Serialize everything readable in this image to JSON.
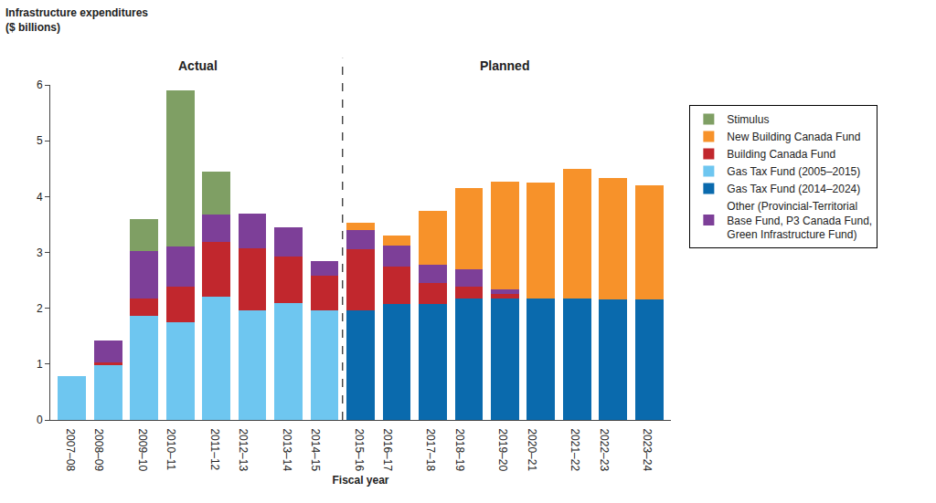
{
  "chart_data": {
    "type": "bar",
    "stacked": true,
    "ylabel": "Infrastructure expenditures\n($ billions)",
    "xlabel": "Fiscal year",
    "annotations": [
      "Actual",
      "Planned"
    ],
    "categories": [
      "2007–08",
      "2008–09",
      "2009–10",
      "2010–11",
      "2011–12",
      "2012–13",
      "2013–14",
      "2014–15",
      "2015–16",
      "2016–17",
      "2017–18",
      "2018–19",
      "2019–20",
      "2020–21",
      "2021–22",
      "2022–23",
      "2023–24"
    ],
    "ylim": [
      0,
      6
    ],
    "yticks": [
      0,
      1,
      2,
      3,
      4,
      5,
      6
    ],
    "grid": false,
    "legend": "right",
    "series": [
      {
        "name": "Gas Tax Fund (2005–2015)",
        "color": "#6ec6f0",
        "values": [
          0.78,
          0.98,
          1.87,
          1.75,
          2.2,
          1.97,
          2.1,
          1.97,
          null,
          null,
          null,
          null,
          null,
          null,
          null,
          null,
          null
        ]
      },
      {
        "name": "Gas Tax Fund (2014–2024)",
        "color": "#0a6aad",
        "values": [
          null,
          null,
          null,
          null,
          null,
          null,
          null,
          null,
          1.97,
          2.08,
          2.08,
          2.17,
          2.17,
          2.17,
          2.17,
          2.16,
          2.16
        ]
      },
      {
        "name": "Building Canada Fund",
        "color": "#c1272d",
        "values": [
          null,
          0.05,
          0.3,
          0.63,
          0.98,
          1.1,
          0.82,
          0.62,
          1.08,
          0.67,
          0.38,
          0.22,
          0.08,
          null,
          null,
          null,
          null
        ]
      },
      {
        "name": "Other (Provincial-Territorial Base Fund, P3 Canada Fund, Green Infrastructure Fund)",
        "color": "#7d3f98",
        "values": [
          null,
          0.4,
          0.85,
          0.72,
          0.5,
          0.63,
          0.53,
          0.26,
          0.35,
          0.38,
          0.32,
          0.31,
          0.08,
          null,
          null,
          null,
          null
        ]
      },
      {
        "name": "Stimulus",
        "color": "#7f9f64",
        "values": [
          null,
          null,
          0.58,
          2.8,
          0.77,
          null,
          null,
          null,
          null,
          null,
          null,
          null,
          null,
          null,
          null,
          null,
          null
        ]
      },
      {
        "name": "New Building Canada Fund",
        "color": "#f7922a",
        "values": [
          null,
          null,
          null,
          null,
          null,
          null,
          null,
          null,
          0.13,
          0.17,
          0.97,
          1.46,
          1.94,
          2.08,
          2.32,
          2.18,
          2.04
        ]
      }
    ]
  }
}
